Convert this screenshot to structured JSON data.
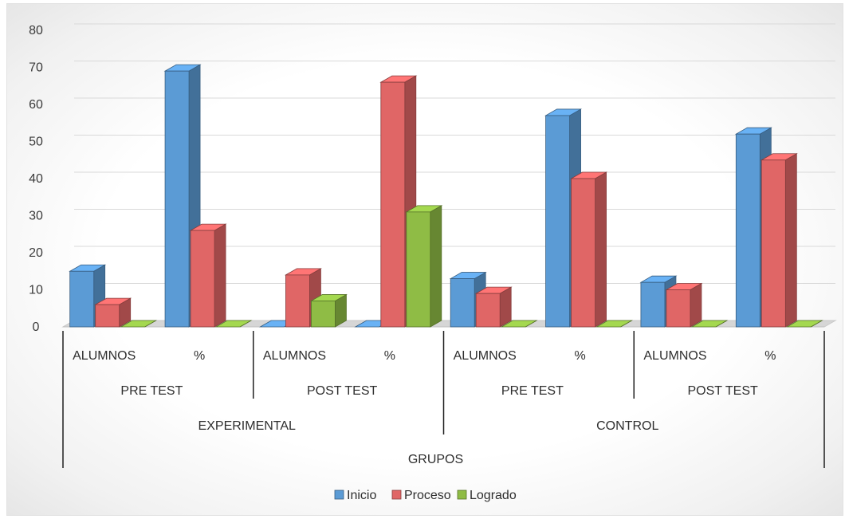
{
  "chart_data": {
    "type": "bar",
    "title": "",
    "xlabel": "GRUPOS",
    "ylabel": "",
    "ylim": [
      0,
      80
    ],
    "yticks": [
      0,
      10,
      20,
      30,
      40,
      50,
      60,
      70,
      80
    ],
    "grid": true,
    "legend_position": "bottom",
    "categories": [
      {
        "label": "ALUMNOS",
        "test": "PRE TEST",
        "group": "EXPERIMENTAL"
      },
      {
        "label": "%",
        "test": "PRE TEST",
        "group": "EXPERIMENTAL"
      },
      {
        "label": "ALUMNOS",
        "test": "POST TEST",
        "group": "EXPERIMENTAL"
      },
      {
        "label": "%",
        "test": "POST TEST",
        "group": "EXPERIMENTAL"
      },
      {
        "label": "ALUMNOS",
        "test": "PRE TEST",
        "group": "CONTROL"
      },
      {
        "label": "%",
        "test": "PRE TEST",
        "group": "CONTROL"
      },
      {
        "label": "ALUMNOS",
        "test": "POST TEST",
        "group": "CONTROL"
      },
      {
        "label": "%",
        "test": "POST TEST",
        "group": "CONTROL"
      }
    ],
    "tests": [
      {
        "label": "PRE TEST",
        "group": "EXPERIMENTAL"
      },
      {
        "label": "POST TEST",
        "group": "EXPERIMENTAL"
      },
      {
        "label": "PRE TEST",
        "group": "CONTROL"
      },
      {
        "label": "POST TEST",
        "group": "CONTROL"
      }
    ],
    "groups": [
      "EXPERIMENTAL",
      "CONTROL"
    ],
    "series": [
      {
        "name": "Inicio",
        "color": "#5b9bd5",
        "values": [
          15,
          69,
          0,
          0,
          13,
          57,
          12,
          52
        ]
      },
      {
        "name": "Proceso",
        "color": "#e06666",
        "values": [
          6,
          26,
          14,
          66,
          9,
          40,
          10,
          45
        ]
      },
      {
        "name": "Logrado",
        "color": "#8fbc45",
        "values": [
          0,
          0,
          7,
          31,
          0,
          0,
          0,
          0
        ]
      }
    ]
  }
}
